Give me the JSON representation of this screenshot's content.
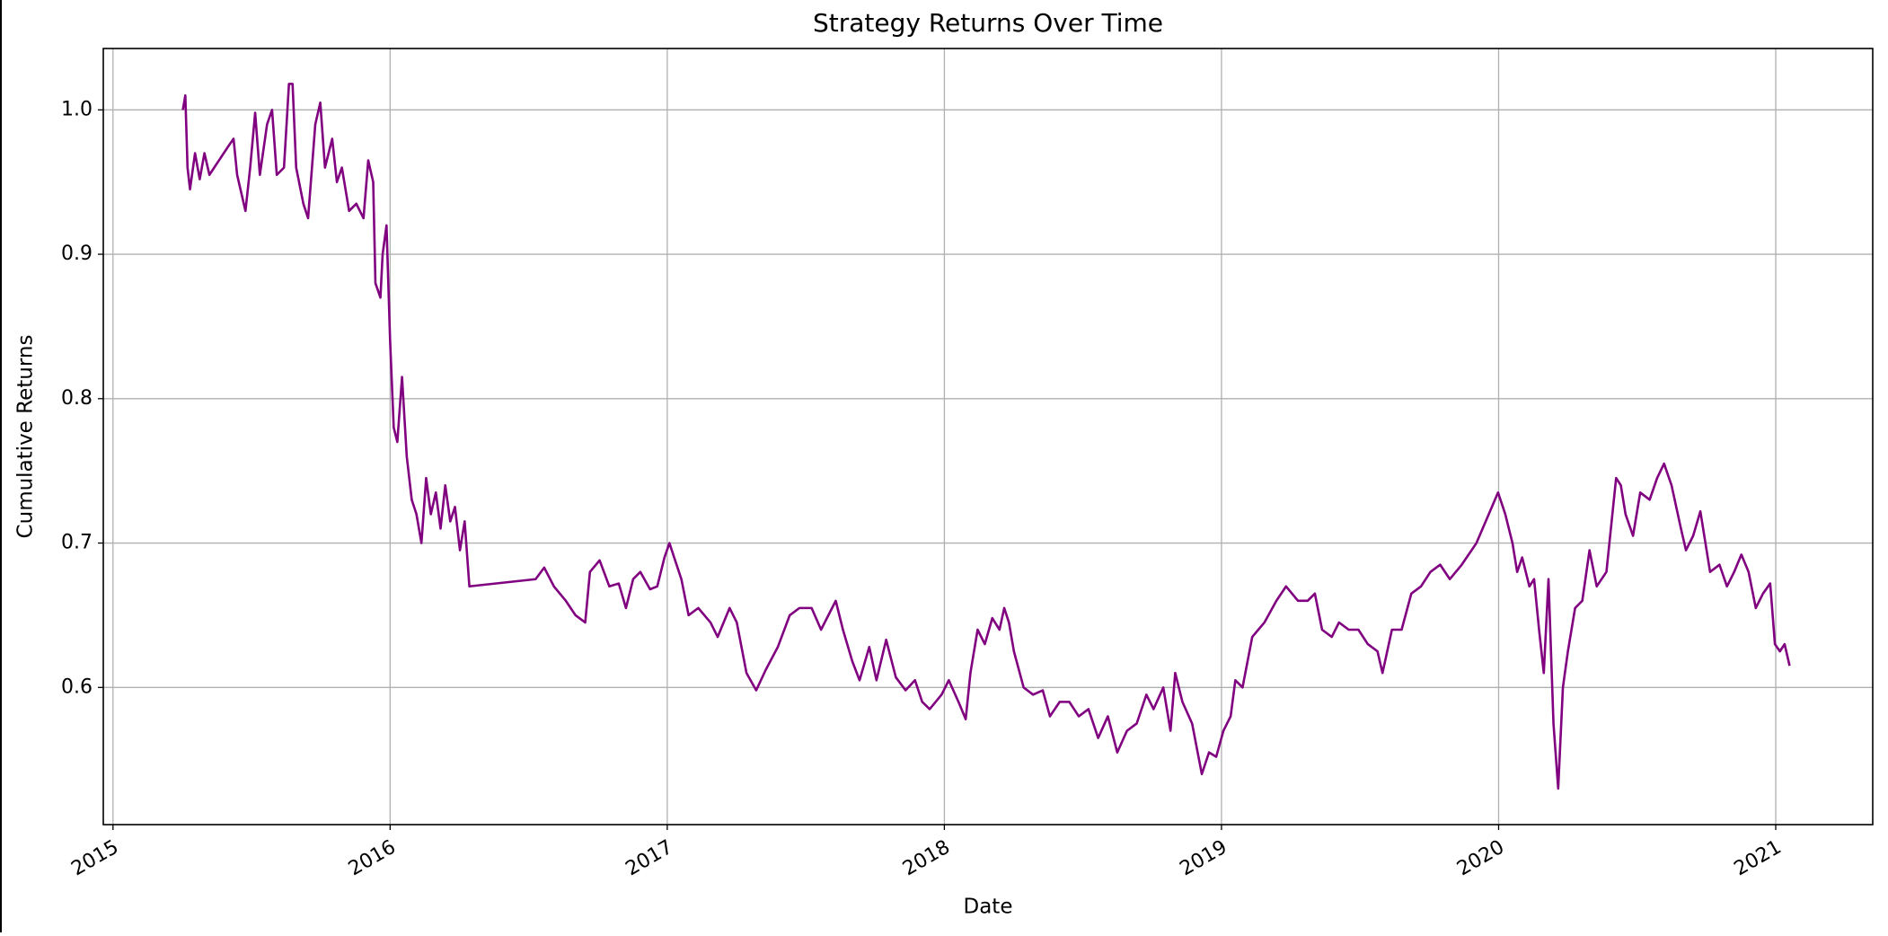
{
  "chart_data": {
    "type": "line",
    "title": "Strategy Returns Over Time",
    "xlabel": "Date",
    "ylabel": "Cumulative Returns",
    "color": "#800080",
    "grid": true,
    "xlim": [
      2014.965,
      2021.35
    ],
    "ylim": [
      0.505,
      1.0425
    ],
    "xticks": [
      2015,
      2016,
      2017,
      2018,
      2019,
      2020,
      2021
    ],
    "yticks": [
      0.6,
      0.7,
      0.8,
      0.9,
      {
        "value": 1,
        "label": "1.0"
      }
    ],
    "x": [
      2015.252,
      2015.261,
      2015.269,
      2015.278,
      2015.296,
      2015.313,
      2015.33,
      2015.348,
      2015.417,
      2015.435,
      2015.448,
      2015.478,
      2015.495,
      2015.513,
      2015.53,
      2015.556,
      2015.574,
      2015.591,
      2015.617,
      2015.635,
      2015.648,
      2015.661,
      2015.687,
      2015.704,
      2015.73,
      2015.748,
      2015.765,
      2015.791,
      2015.808,
      2015.826,
      2015.852,
      2015.878,
      2015.904,
      2015.921,
      2015.939,
      2015.947,
      2015.965,
      2015.973,
      2015.987,
      2016.0,
      2016.013,
      2016.026,
      2016.043,
      2016.06,
      2016.078,
      2016.095,
      2016.113,
      2016.13,
      2016.147,
      2016.165,
      2016.182,
      2016.199,
      2016.217,
      2016.234,
      2016.252,
      2016.269,
      2016.286,
      2016.525,
      2016.556,
      2016.591,
      2016.634,
      2016.669,
      2016.704,
      2016.721,
      2016.756,
      2016.791,
      2016.825,
      2016.851,
      2016.877,
      2016.903,
      2016.938,
      2016.964,
      2016.99,
      2017.008,
      2017.025,
      2017.051,
      2017.077,
      2017.112,
      2017.156,
      2017.182,
      2017.225,
      2017.251,
      2017.286,
      2017.321,
      2017.355,
      2017.399,
      2017.442,
      2017.477,
      2017.521,
      2017.555,
      2017.608,
      2017.634,
      2017.668,
      2017.694,
      2017.729,
      2017.755,
      2017.79,
      2017.825,
      2017.86,
      2017.894,
      2017.92,
      2017.947,
      2017.99,
      2018.016,
      2018.051,
      2018.077,
      2018.094,
      2018.12,
      2018.146,
      2018.173,
      2018.199,
      2018.216,
      2018.233,
      2018.251,
      2018.286,
      2018.32,
      2018.355,
      2018.381,
      2018.416,
      2018.451,
      2018.485,
      2018.52,
      2018.555,
      2018.59,
      2018.624,
      2018.659,
      2018.694,
      2018.729,
      2018.755,
      2018.79,
      2018.816,
      2018.833,
      2018.859,
      2018.894,
      2018.929,
      2018.955,
      2018.981,
      2019.007,
      2019.033,
      2019.05,
      2019.076,
      2019.111,
      2019.155,
      2019.198,
      2019.233,
      2019.276,
      2019.311,
      2019.337,
      2019.363,
      2019.398,
      2019.424,
      2019.459,
      2019.494,
      2019.528,
      2019.563,
      2019.581,
      2019.615,
      2019.65,
      2019.685,
      2019.72,
      2019.754,
      2019.789,
      2019.824,
      2019.867,
      2019.92,
      2019.998,
      2020.024,
      2020.05,
      2020.067,
      2020.085,
      2020.111,
      2020.128,
      2020.146,
      2020.163,
      2020.18,
      2020.198,
      2020.215,
      2020.232,
      2020.25,
      2020.276,
      2020.302,
      2020.328,
      2020.354,
      2020.389,
      2020.424,
      2020.441,
      2020.458,
      2020.485,
      2020.511,
      2020.545,
      2020.572,
      2020.597,
      2020.624,
      2020.658,
      2020.676,
      2020.702,
      2020.728,
      2020.763,
      2020.797,
      2020.824,
      2020.85,
      2020.876,
      2020.902,
      2020.928,
      2020.954,
      2020.98,
      2020.997,
      2021.015,
      2021.032,
      2021.05
    ],
    "values": [
      1.0,
      1.01,
      0.96,
      0.945,
      0.97,
      0.952,
      0.97,
      0.955,
      0.975,
      0.98,
      0.955,
      0.93,
      0.96,
      0.998,
      0.955,
      0.99,
      1.0,
      0.955,
      0.96,
      1.018,
      1.018,
      0.96,
      0.935,
      0.925,
      0.99,
      1.005,
      0.96,
      0.98,
      0.95,
      0.96,
      0.93,
      0.935,
      0.925,
      0.965,
      0.95,
      0.88,
      0.87,
      0.9,
      0.92,
      0.84,
      0.78,
      0.77,
      0.815,
      0.76,
      0.73,
      0.72,
      0.7,
      0.745,
      0.72,
      0.735,
      0.71,
      0.74,
      0.715,
      0.725,
      0.695,
      0.715,
      0.67,
      0.675,
      0.683,
      0.67,
      0.66,
      0.65,
      0.645,
      0.68,
      0.688,
      0.67,
      0.672,
      0.655,
      0.675,
      0.68,
      0.668,
      0.67,
      0.69,
      0.7,
      0.69,
      0.675,
      0.65,
      0.655,
      0.645,
      0.635,
      0.655,
      0.645,
      0.61,
      0.598,
      0.612,
      0.628,
      0.65,
      0.655,
      0.655,
      0.64,
      0.66,
      0.64,
      0.618,
      0.605,
      0.628,
      0.605,
      0.633,
      0.607,
      0.598,
      0.605,
      0.59,
      0.585,
      0.595,
      0.605,
      0.59,
      0.578,
      0.61,
      0.64,
      0.63,
      0.648,
      0.64,
      0.655,
      0.645,
      0.625,
      0.6,
      0.595,
      0.598,
      0.58,
      0.59,
      0.59,
      0.58,
      0.585,
      0.565,
      0.58,
      0.555,
      0.57,
      0.575,
      0.595,
      0.585,
      0.6,
      0.57,
      0.61,
      0.59,
      0.575,
      0.54,
      0.555,
      0.552,
      0.57,
      0.58,
      0.605,
      0.6,
      0.635,
      0.645,
      0.66,
      0.67,
      0.66,
      0.66,
      0.665,
      0.64,
      0.635,
      0.645,
      0.64,
      0.64,
      0.63,
      0.625,
      0.61,
      0.64,
      0.64,
      0.665,
      0.67,
      0.68,
      0.685,
      0.675,
      0.685,
      0.7,
      0.735,
      0.72,
      0.7,
      0.68,
      0.69,
      0.67,
      0.675,
      0.64,
      0.61,
      0.675,
      0.575,
      0.53,
      0.6,
      0.625,
      0.655,
      0.66,
      0.695,
      0.67,
      0.68,
      0.745,
      0.74,
      0.72,
      0.705,
      0.735,
      0.73,
      0.745,
      0.755,
      0.74,
      0.71,
      0.695,
      0.705,
      0.722,
      0.68,
      0.685,
      0.67,
      0.68,
      0.692,
      0.68,
      0.655,
      0.665,
      0.672,
      0.63,
      0.625,
      0.63,
      0.615
    ]
  }
}
